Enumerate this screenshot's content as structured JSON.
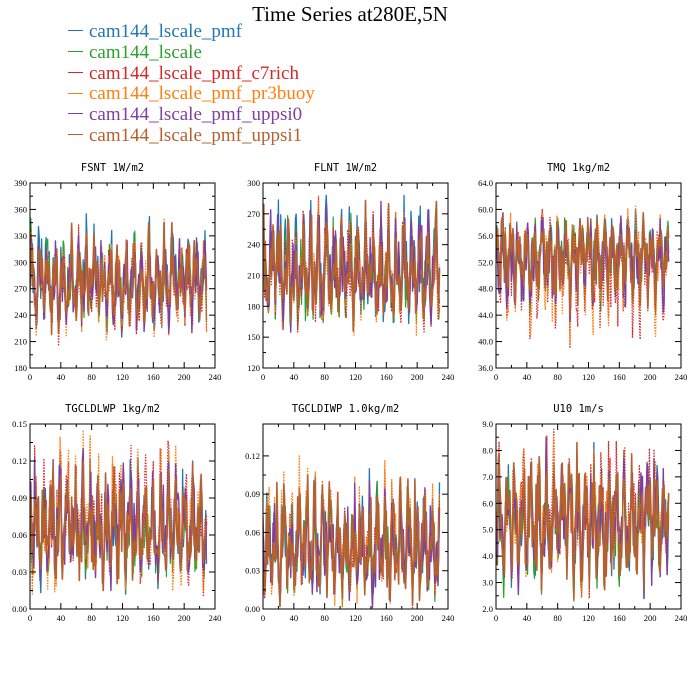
{
  "title": "Time Series at280E,5N",
  "legend": [
    {
      "label": "cam144_lscale_pmf",
      "color": "#1f77b4"
    },
    {
      "label": "cam144_lscale",
      "color": "#2ca02c"
    },
    {
      "label": "cam144_lscale_pmf_c7rich",
      "color": "#d62728"
    },
    {
      "label": "cam144_lscale_pmf_pr3buoy",
      "color": "#ff7f0e"
    },
    {
      "label": "cam144_lscale_pmf_uppsi0",
      "color": "#7f3fa0"
    },
    {
      "label": "cam144_lscale_pmf_uppsi1",
      "color": "#b5602f"
    }
  ],
  "chart_data": [
    {
      "type": "line",
      "title": "FSNT   1W/m2",
      "xlim": [
        0,
        240
      ],
      "ylim": [
        180,
        390
      ],
      "xticks": [
        0,
        40,
        80,
        120,
        160,
        200,
        240
      ],
      "yticks": [
        180,
        210,
        240,
        270,
        300,
        330,
        360,
        390
      ],
      "ytick_labels": [
        "180",
        "210",
        "240",
        "270",
        "300",
        "330",
        "360",
        "390"
      ],
      "n_points": 230,
      "series_stats": [
        {
          "series": "cam144_lscale_pmf",
          "mean": 275,
          "min": 215,
          "max": 355
        },
        {
          "series": "cam144_lscale",
          "mean": 276,
          "min": 222,
          "max": 350
        },
        {
          "series": "cam144_lscale_pmf_c7rich",
          "mean": 274,
          "min": 205,
          "max": 345
        },
        {
          "series": "cam144_lscale_pmf_pr3buoy",
          "mean": 275,
          "min": 212,
          "max": 350
        },
        {
          "series": "cam144_lscale_pmf_uppsi0",
          "mean": 276,
          "min": 220,
          "max": 345
        },
        {
          "series": "cam144_lscale_pmf_uppsi1",
          "mean": 275,
          "min": 218,
          "max": 345
        }
      ]
    },
    {
      "type": "line",
      "title": "FLNT   1W/m2",
      "xlim": [
        0,
        240
      ],
      "ylim": [
        120,
        300
      ],
      "xticks": [
        0,
        40,
        80,
        120,
        160,
        200,
        240
      ],
      "yticks": [
        120,
        150,
        180,
        210,
        240,
        270,
        300
      ],
      "ytick_labels": [
        "120",
        "150",
        "180",
        "210",
        "240",
        "270",
        "300"
      ],
      "n_points": 230,
      "series_stats": [
        {
          "series": "cam144_lscale_pmf",
          "mean": 210,
          "min": 155,
          "max": 288
        },
        {
          "series": "cam144_lscale",
          "mean": 212,
          "min": 158,
          "max": 280
        },
        {
          "series": "cam144_lscale_pmf_c7rich",
          "mean": 209,
          "min": 155,
          "max": 287
        },
        {
          "series": "cam144_lscale_pmf_pr3buoy",
          "mean": 210,
          "min": 152,
          "max": 285
        },
        {
          "series": "cam144_lscale_pmf_uppsi0",
          "mean": 208,
          "min": 155,
          "max": 282
        },
        {
          "series": "cam144_lscale_pmf_uppsi1",
          "mean": 210,
          "min": 156,
          "max": 283
        }
      ]
    },
    {
      "type": "line",
      "title": "TMQ   1kg/m2",
      "xlim": [
        0,
        240
      ],
      "ylim": [
        36,
        64
      ],
      "xticks": [
        0,
        40,
        80,
        120,
        160,
        200,
        240
      ],
      "yticks": [
        36,
        40,
        44,
        48,
        52,
        56,
        60,
        64
      ],
      "ytick_labels": [
        "36.0",
        "40.0",
        "44.0",
        "48.0",
        "52.0",
        "56.0",
        "60.0",
        "64.0"
      ],
      "n_points": 225,
      "series_stats": [
        {
          "series": "cam144_lscale_pmf",
          "mean": 53,
          "min": 44,
          "max": 60
        },
        {
          "series": "cam144_lscale",
          "mean": 53.5,
          "min": 44,
          "max": 59
        },
        {
          "series": "cam144_lscale_pmf_c7rich",
          "mean": 52.5,
          "min": 39,
          "max": 60
        },
        {
          "series": "cam144_lscale_pmf_pr3buoy",
          "mean": 53,
          "min": 39.5,
          "max": 60.5
        },
        {
          "series": "cam144_lscale_pmf_uppsi0",
          "mean": 52.5,
          "min": 43,
          "max": 59
        },
        {
          "series": "cam144_lscale_pmf_uppsi1",
          "mean": 53,
          "min": 44,
          "max": 59.5
        }
      ]
    },
    {
      "type": "line",
      "title": "TGCLDLWP   1kg/m2",
      "xlim": [
        0,
        240
      ],
      "ylim": [
        0,
        0.15
      ],
      "xticks": [
        0,
        40,
        80,
        120,
        160,
        200,
        240
      ],
      "yticks": [
        0,
        0.03,
        0.06,
        0.09,
        0.12,
        0.15
      ],
      "ytick_labels": [
        "0.00",
        "0.03",
        "0.06",
        "0.09",
        "0.12",
        "0.15"
      ],
      "n_points": 230,
      "series_stats": [
        {
          "series": "cam144_lscale_pmf",
          "mean": 0.062,
          "min": 0.012,
          "max": 0.125
        },
        {
          "series": "cam144_lscale",
          "mean": 0.06,
          "min": 0.015,
          "max": 0.11
        },
        {
          "series": "cam144_lscale_pmf_c7rich",
          "mean": 0.063,
          "min": 0.01,
          "max": 0.14
        },
        {
          "series": "cam144_lscale_pmf_pr3buoy",
          "mean": 0.064,
          "min": 0.012,
          "max": 0.145
        },
        {
          "series": "cam144_lscale_pmf_uppsi0",
          "mean": 0.065,
          "min": 0.015,
          "max": 0.13
        },
        {
          "series": "cam144_lscale_pmf_uppsi1",
          "mean": 0.063,
          "min": 0.015,
          "max": 0.12
        }
      ]
    },
    {
      "type": "line",
      "title": "TGCLDIWP   1.0kg/m2",
      "xlim": [
        0,
        240
      ],
      "ylim": [
        0,
        0.145
      ],
      "xticks": [
        0,
        40,
        80,
        120,
        160,
        200,
        240
      ],
      "yticks": [
        0,
        0.03,
        0.06,
        0.09,
        0.12
      ],
      "ytick_labels": [
        "0.00",
        "0.03",
        "0.06",
        "0.09",
        "0.12"
      ],
      "n_points": 230,
      "series_stats": [
        {
          "series": "cam144_lscale_pmf",
          "mean": 0.045,
          "min": 0.002,
          "max": 0.11
        },
        {
          "series": "cam144_lscale",
          "mean": 0.043,
          "min": 0.002,
          "max": 0.1
        },
        {
          "series": "cam144_lscale_pmf_c7rich",
          "mean": 0.045,
          "min": 0.001,
          "max": 0.11
        },
        {
          "series": "cam144_lscale_pmf_pr3buoy",
          "mean": 0.046,
          "min": 0.001,
          "max": 0.12
        },
        {
          "series": "cam144_lscale_pmf_uppsi0",
          "mean": 0.044,
          "min": 0.001,
          "max": 0.1
        },
        {
          "series": "cam144_lscale_pmf_uppsi1",
          "mean": 0.045,
          "min": 0.002,
          "max": 0.105
        }
      ]
    },
    {
      "type": "line",
      "title": "U10   1m/s",
      "xlim": [
        0,
        240
      ],
      "ylim": [
        2,
        9
      ],
      "xticks": [
        0,
        40,
        80,
        120,
        160,
        200,
        240
      ],
      "yticks": [
        2,
        3,
        4,
        5,
        6,
        7,
        8,
        9
      ],
      "ytick_labels": [
        "2.0",
        "3.0",
        "4.0",
        "5.0",
        "6.0",
        "7.0",
        "8.0",
        "9.0"
      ],
      "n_points": 225,
      "series_stats": [
        {
          "series": "cam144_lscale_pmf",
          "mean": 5.3,
          "min": 2.4,
          "max": 8.3
        },
        {
          "series": "cam144_lscale",
          "mean": 5.2,
          "min": 2.3,
          "max": 8.0
        },
        {
          "series": "cam144_lscale_pmf_c7rich",
          "mean": 5.4,
          "min": 2.4,
          "max": 8.8
        },
        {
          "series": "cam144_lscale_pmf_pr3buoy",
          "mean": 5.4,
          "min": 2.4,
          "max": 8.5
        },
        {
          "series": "cam144_lscale_pmf_uppsi0",
          "mean": 5.3,
          "min": 2.4,
          "max": 8.5
        },
        {
          "series": "cam144_lscale_pmf_uppsi1",
          "mean": 5.3,
          "min": 2.4,
          "max": 8.3
        }
      ]
    }
  ]
}
